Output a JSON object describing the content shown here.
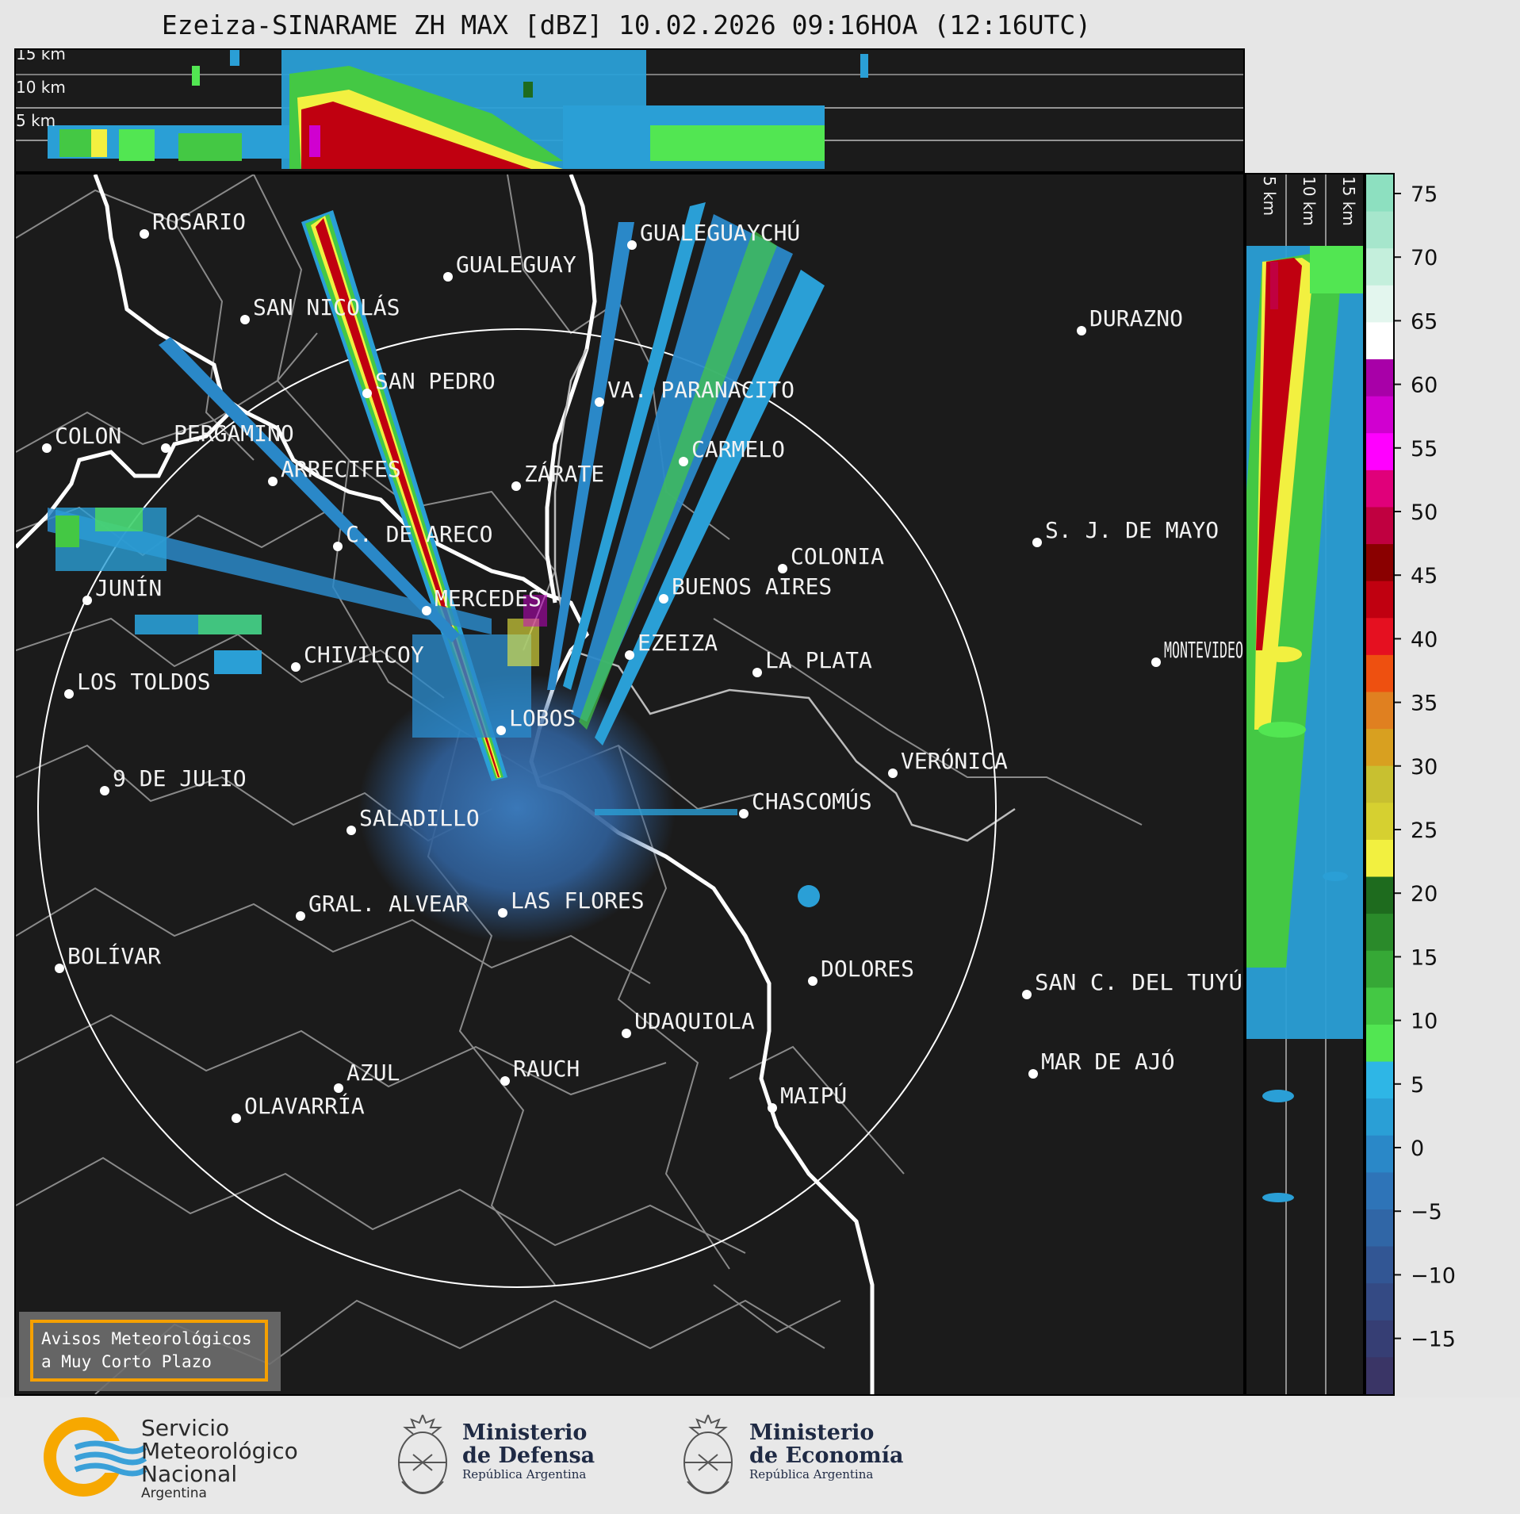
{
  "title": "Ezeiza-SINARAME ZH MAX [dBZ] 10.02.2026 09:16HOA (12:16UTC)",
  "top_panel": {
    "height_labels": [
      "15 km",
      "10 km",
      "5 km"
    ]
  },
  "side_panel": {
    "height_labels": [
      "5 km",
      "10 km",
      "15 km"
    ]
  },
  "colorbar": {
    "ticks": [
      "75",
      "70",
      "65",
      "60",
      "55",
      "50",
      "45",
      "40",
      "35",
      "30",
      "25",
      "20",
      "15",
      "10",
      "5",
      "0",
      "−5",
      "−10",
      "−15"
    ],
    "colors": [
      "#8de0c0",
      "#a6e6cc",
      "#c4efdc",
      "#e3f6ee",
      "#ffffff",
      "#a800a8",
      "#d000d0",
      "#ff00ff",
      "#e0007a",
      "#c00040",
      "#8a0000",
      "#c00010",
      "#e51020",
      "#ee5010",
      "#e08020",
      "#d8a020",
      "#c8c030",
      "#d6d030",
      "#f2f040",
      "#1e6b1e",
      "#2a8a2a",
      "#36a836",
      "#44c844",
      "#52e652",
      "#2eb6e6",
      "#2a9fd6",
      "#2a88c8",
      "#2e74b8",
      "#3066a6",
      "#325694",
      "#344a84",
      "#363e74",
      "#3a3566"
    ]
  },
  "cities": [
    {
      "name": "ROSARIO"
    },
    {
      "name": "GUALEGUAYCHÚ"
    },
    {
      "name": "GUALEGUAY"
    },
    {
      "name": "SAN NICOLÁS"
    },
    {
      "name": "DURAZNO"
    },
    {
      "name": "SAN PEDRO"
    },
    {
      "name": "VA. PARANACITO"
    },
    {
      "name": "COLON"
    },
    {
      "name": "PERGAMINO"
    },
    {
      "name": "CARMELO"
    },
    {
      "name": "ARRECIFES"
    },
    {
      "name": "ZÁRATE"
    },
    {
      "name": "S. J. DE MAYO"
    },
    {
      "name": "C. DE ARECO"
    },
    {
      "name": "COLONIA"
    },
    {
      "name": "JUNÍN"
    },
    {
      "name": "BUENOS AIRES"
    },
    {
      "name": "MERCEDES"
    },
    {
      "name": "EZEIZA"
    },
    {
      "name": "MONTEVIDEO"
    },
    {
      "name": "CHIVILCOY"
    },
    {
      "name": "LA PLATA"
    },
    {
      "name": "LOS TOLDOS"
    },
    {
      "name": "LOBOS"
    },
    {
      "name": "VERÓNICA"
    },
    {
      "name": "9 DE JULIO"
    },
    {
      "name": "CHASCOMÚS"
    },
    {
      "name": "SALADILLO"
    },
    {
      "name": "GRAL. ALVEAR"
    },
    {
      "name": "LAS FLORES"
    },
    {
      "name": "BOLÍVAR"
    },
    {
      "name": "DOLORES"
    },
    {
      "name": "SAN C. DEL TUYÚ"
    },
    {
      "name": "UDAQUIOLA"
    },
    {
      "name": "MAR DE AJÓ"
    },
    {
      "name": "AZUL"
    },
    {
      "name": "RAUCH"
    },
    {
      "name": "MAIPÚ"
    },
    {
      "name": "OLAVARRÍA"
    }
  ],
  "warning_box": {
    "line1": "Avisos Meteorológicos",
    "line2": "a Muy Corto Plazo"
  },
  "footer": {
    "smn": {
      "line1": "Servicio",
      "line2": "Meteorológico",
      "line3": "Nacional",
      "line4": "Argentina"
    },
    "defensa": {
      "line1": "Ministerio",
      "line2": "de Defensa",
      "line3": "República Argentina"
    },
    "economia": {
      "line1": "Ministerio",
      "line2": "de Economía",
      "line3": "República Argentina"
    }
  }
}
